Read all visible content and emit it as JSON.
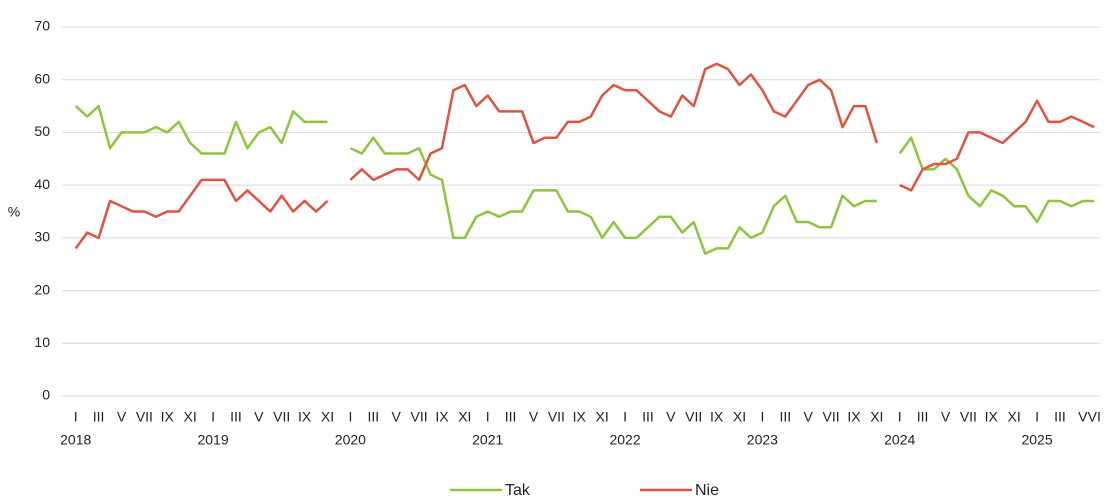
{
  "chart_data": {
    "type": "line",
    "ylabel": "%",
    "categories": [
      "I",
      null,
      "III",
      null,
      "V",
      null,
      "VII",
      null,
      "IX",
      null,
      "XI",
      null,
      "I",
      null,
      "III",
      null,
      "V",
      null,
      "VII",
      null,
      "IX",
      null,
      "XI",
      null,
      "I",
      null,
      "III",
      null,
      "V",
      null,
      "VII",
      null,
      "IX",
      null,
      "XI",
      null,
      "I",
      null,
      "III",
      null,
      "V",
      null,
      "VII",
      null,
      "IX",
      null,
      "XI",
      null,
      "I",
      null,
      "III",
      null,
      "V",
      null,
      "VII",
      null,
      "IX",
      null,
      "XI",
      null,
      "I",
      null,
      "III",
      null,
      "V",
      null,
      "VII",
      null,
      "IX",
      null,
      "XI",
      null,
      "I",
      null,
      "III",
      null,
      "V",
      null,
      "VII",
      null,
      "IX",
      null,
      "XI",
      null,
      "I",
      null,
      "III",
      null,
      "V",
      "VI"
    ],
    "years": [
      "2018",
      "2019",
      "2020",
      "2021",
      "2022",
      "2023",
      "2024",
      "2025"
    ],
    "series": [
      {
        "name": "Tak",
        "color": "#8cc63f",
        "values": [
          55,
          53,
          55,
          47,
          50,
          50,
          50,
          51,
          50,
          52,
          48,
          46,
          46,
          46,
          52,
          47,
          50,
          51,
          48,
          54,
          52,
          52,
          52,
          null,
          47,
          46,
          49,
          46,
          46,
          46,
          47,
          42,
          41,
          30,
          30,
          34,
          35,
          34,
          35,
          35,
          39,
          39,
          39,
          35,
          35,
          34,
          30,
          33,
          30,
          30,
          32,
          34,
          34,
          31,
          33,
          27,
          28,
          28,
          32,
          30,
          31,
          36,
          38,
          33,
          33,
          32,
          32,
          38,
          36,
          37,
          37,
          null,
          46,
          49,
          43,
          43,
          45,
          43,
          38,
          36,
          39,
          38,
          36,
          36,
          33,
          37,
          37,
          36,
          37,
          37
        ]
      },
      {
        "name": "Nie",
        "color": "#e0533f",
        "values": [
          28,
          31,
          30,
          37,
          36,
          35,
          35,
          34,
          35,
          35,
          38,
          41,
          41,
          41,
          37,
          39,
          37,
          35,
          38,
          35,
          37,
          35,
          37,
          null,
          41,
          43,
          41,
          42,
          43,
          43,
          41,
          46,
          47,
          58,
          59,
          55,
          57,
          54,
          54,
          54,
          48,
          49,
          49,
          52,
          52,
          53,
          57,
          59,
          58,
          58,
          56,
          54,
          53,
          57,
          55,
          62,
          63,
          62,
          59,
          61,
          58,
          54,
          53,
          56,
          59,
          60,
          58,
          51,
          55,
          55,
          48,
          null,
          40,
          39,
          43,
          44,
          44,
          45,
          50,
          50,
          49,
          48,
          50,
          52,
          56,
          52,
          52,
          53,
          52,
          51
        ]
      }
    ],
    "ylim": [
      0,
      70
    ],
    "yticks": [
      0,
      10,
      20,
      30,
      40,
      50,
      60,
      70
    ],
    "grid": true,
    "legend": "bottom"
  }
}
